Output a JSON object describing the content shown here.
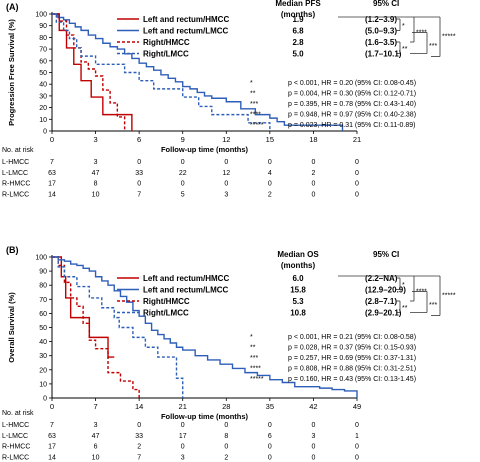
{
  "colors": {
    "red": "#c00000",
    "blue": "#2e5fb8",
    "axis": "#000000"
  },
  "chart_data": [
    {
      "type": "line",
      "chart_subtype": "kaplan-meier",
      "panel": "(A)",
      "ylabel": "Progression Free Survival (%)",
      "xlabel": "Follow-up time (months)",
      "xlim": [
        0,
        21
      ],
      "ylim": [
        0,
        100
      ],
      "x_ticks": [
        "0",
        "3",
        "6",
        "9",
        "12",
        "15",
        "18",
        "21"
      ],
      "y_ticks": [
        "0",
        "10",
        "20",
        "30",
        "40",
        "50",
        "60",
        "70",
        "80",
        "90",
        "100"
      ],
      "table": {
        "col_group": "Median PFS",
        "col_unit": "(months)",
        "col_ci": "95% CI",
        "rows": [
          {
            "label": "Left and rectum/HMCC",
            "median": "1.9",
            "ci": "(1.2–3.9)"
          },
          {
            "label": "Left and rectum/LMCC",
            "median": "6.8",
            "ci": "(5.0–9.3)"
          },
          {
            "label": "Right/HMCC",
            "median": "2.8",
            "ci": "(1.6–3.5)"
          },
          {
            "label": "Right/LMCC",
            "median": "5.0",
            "ci": "(1.7–10.1)"
          }
        ]
      },
      "bracket_marks": [
        "*",
        "****",
        "*****",
        "**",
        "***"
      ],
      "stats": [
        {
          "mark": "*",
          "text": "p < 0.001, HR = 0.20 (95% CI: 0.08-0.45)"
        },
        {
          "mark": "**",
          "text": "p = 0.004, HR = 0.30 (95% CI: 0.12-0.71)"
        },
        {
          "mark": "***",
          "text": "p = 0.395, HR = 0.78 (95% CI: 0.43-1.40)"
        },
        {
          "mark": "****",
          "text": "p = 0.948, HR = 0.97 (95% CI: 0.40-2.38)"
        },
        {
          "mark": "*****",
          "text": "p = 0.023, HR = 0.31 (95% CI: 0.11-0.89)"
        }
      ],
      "risk_title": "No. at risk",
      "risk": [
        {
          "label": "L-HMCC",
          "values": [
            "7",
            "3",
            "0",
            "0",
            "0",
            "0",
            "0",
            "0"
          ]
        },
        {
          "label": "L-LMCC",
          "values": [
            "63",
            "47",
            "33",
            "22",
            "12",
            "4",
            "2",
            "0"
          ]
        },
        {
          "label": "R-HMCC",
          "values": [
            "17",
            "8",
            "0",
            "0",
            "0",
            "0",
            "0",
            "0"
          ]
        },
        {
          "label": "R-LMCC",
          "values": [
            "14",
            "10",
            "7",
            "5",
            "3",
            "2",
            "0",
            "0"
          ]
        }
      ],
      "series": [
        {
          "name": "Left and rectum/HMCC",
          "color": "red",
          "dash": false,
          "x": [
            0,
            0.5,
            1.0,
            1.5,
            2.0,
            2.7,
            3.5,
            4.5,
            5.5
          ],
          "y": [
            100,
            86,
            71,
            57,
            43,
            29,
            14,
            14,
            0
          ]
        },
        {
          "name": "Left and rectum/LMCC",
          "color": "blue",
          "dash": false,
          "x": [
            0,
            0.4,
            0.8,
            1.2,
            1.6,
            2.0,
            2.5,
            3.0,
            3.5,
            4.0,
            4.5,
            5.0,
            5.5,
            6.0,
            6.5,
            7.0,
            7.5,
            8.0,
            8.5,
            9.0,
            9.5,
            10.0,
            10.5,
            11.0,
            12.0,
            13.0,
            14.0,
            15.0,
            15.5,
            16.0,
            17.0,
            18.0,
            19.0,
            20.0
          ],
          "y": [
            100,
            97,
            95,
            92,
            89,
            86,
            82,
            79,
            75,
            72,
            70,
            66,
            62,
            58,
            55,
            52,
            48,
            45,
            42,
            38,
            36,
            33,
            30,
            28,
            25,
            19,
            14,
            11,
            8,
            5,
            5,
            5,
            5,
            0
          ]
        },
        {
          "name": "Right/HMCC",
          "color": "red",
          "dash": true,
          "x": [
            0,
            0.5,
            1.0,
            1.5,
            2.0,
            2.5,
            3.0,
            3.5,
            4.0,
            4.5,
            5.0
          ],
          "y": [
            100,
            94,
            82,
            71,
            59,
            53,
            47,
            35,
            24,
            12,
            0
          ]
        },
        {
          "name": "Right/LMCC",
          "color": "blue",
          "dash": true,
          "x": [
            0,
            0.3,
            0.8,
            1.2,
            1.7,
            2.0,
            3.0,
            4.0,
            5.0,
            6.0,
            7.0,
            8.0,
            9.0,
            10.1,
            11.0,
            12.0,
            13.5,
            15.0
          ],
          "y": [
            100,
            93,
            86,
            79,
            71,
            64,
            57,
            57,
            50,
            43,
            36,
            36,
            29,
            21,
            14,
            14,
            7,
            0
          ]
        }
      ]
    },
    {
      "type": "line",
      "chart_subtype": "kaplan-meier",
      "panel": "(B)",
      "ylabel": "Overall Survival (%)",
      "xlabel": "Follow-up time (months)",
      "xlim": [
        0,
        49
      ],
      "ylim": [
        0,
        100
      ],
      "x_ticks": [
        "0",
        "7",
        "14",
        "21",
        "28",
        "35",
        "42",
        "49"
      ],
      "y_ticks": [
        "0",
        "10",
        "20",
        "30",
        "40",
        "50",
        "60",
        "70",
        "80",
        "90",
        "100"
      ],
      "table": {
        "col_group": "Median OS",
        "col_unit": "(months)",
        "col_ci": "95% CI",
        "rows": [
          {
            "label": "Left and rectum/HMCC",
            "median": "6.0",
            "ci": "(2.2–NA)"
          },
          {
            "label": "Left and rectum/LMCC",
            "median": "15.8",
            "ci": "(12.9–20.9)"
          },
          {
            "label": "Right/HMCC",
            "median": "5.3",
            "ci": "(2.8–7.1)"
          },
          {
            "label": "Right/LMCC",
            "median": "10.8",
            "ci": "(2.9–20.1)"
          }
        ]
      },
      "bracket_marks": [
        "*",
        "****",
        "*****",
        "**",
        "***"
      ],
      "stats": [
        {
          "mark": "*",
          "text": "p < 0.001, HR = 0.21 (95% CI: 0.08-0.58)"
        },
        {
          "mark": "**",
          "text": "p = 0.028, HR = 0.37 (95% CI: 0.15-0.93)"
        },
        {
          "mark": "***",
          "text": "p = 0.257, HR = 0.69 (95% CI: 0.37-1.31)"
        },
        {
          "mark": "****",
          "text": "p = 0.808, HR = 0.88 (95% CI: 0.31-2.51)"
        },
        {
          "mark": "*****",
          "text": "p = 0.160, HR = 0.43 (95% CI: 0.13-1.45)"
        }
      ],
      "risk_title": "No. at risk",
      "risk": [
        {
          "label": "L-HMCC",
          "values": [
            "7",
            "3",
            "0",
            "0",
            "0",
            "0",
            "0",
            "0"
          ]
        },
        {
          "label": "L-LMCC",
          "values": [
            "63",
            "47",
            "33",
            "17",
            "8",
            "6",
            "3",
            "1"
          ]
        },
        {
          "label": "R-HMCC",
          "values": [
            "17",
            "6",
            "2",
            "0",
            "0",
            "0",
            "0",
            "0"
          ]
        },
        {
          "label": "R-LMCC",
          "values": [
            "14",
            "10",
            "7",
            "3",
            "2",
            "0",
            "0",
            "0"
          ]
        }
      ],
      "series": [
        {
          "name": "Left and rectum/HMCC",
          "color": "red",
          "dash": false,
          "x": [
            0,
            1.5,
            2.2,
            3.0,
            4.5,
            6.0,
            7.5,
            9.0,
            10.0
          ],
          "y": [
            100,
            86,
            71,
            57,
            57,
            43,
            43,
            29,
            29
          ]
        },
        {
          "name": "Left and rectum/LMCC",
          "color": "blue",
          "dash": false,
          "x": [
            0,
            1,
            2,
            3,
            4,
            5,
            6,
            7,
            8,
            9,
            10,
            11,
            12,
            13,
            14,
            15,
            16,
            17,
            18,
            19,
            20,
            21,
            23,
            25,
            27,
            29,
            31,
            33,
            35,
            37,
            39,
            41,
            43,
            45,
            47,
            49
          ],
          "y": [
            100,
            98,
            97,
            95,
            94,
            92,
            90,
            86,
            83,
            80,
            76,
            72,
            68,
            62,
            58,
            53,
            48,
            45,
            42,
            39,
            36,
            34,
            30,
            27,
            24,
            21,
            18,
            16,
            13,
            11,
            8,
            8,
            7,
            6,
            5,
            0
          ]
        },
        {
          "name": "Right/HMCC",
          "color": "red",
          "dash": true,
          "x": [
            0,
            1,
            2,
            3,
            4,
            5,
            6,
            7,
            8,
            9,
            10,
            11,
            12,
            13,
            14
          ],
          "y": [
            100,
            94,
            82,
            71,
            65,
            53,
            41,
            35,
            35,
            18,
            18,
            12,
            12,
            6,
            0
          ]
        },
        {
          "name": "Right/LMCC",
          "color": "blue",
          "dash": true,
          "x": [
            0,
            1,
            2,
            3,
            4,
            6,
            8,
            10,
            10.8,
            13,
            15,
            17,
            20,
            21
          ],
          "y": [
            100,
            93,
            86,
            86,
            79,
            71,
            64,
            57,
            50,
            43,
            36,
            29,
            14,
            0
          ]
        }
      ]
    }
  ]
}
